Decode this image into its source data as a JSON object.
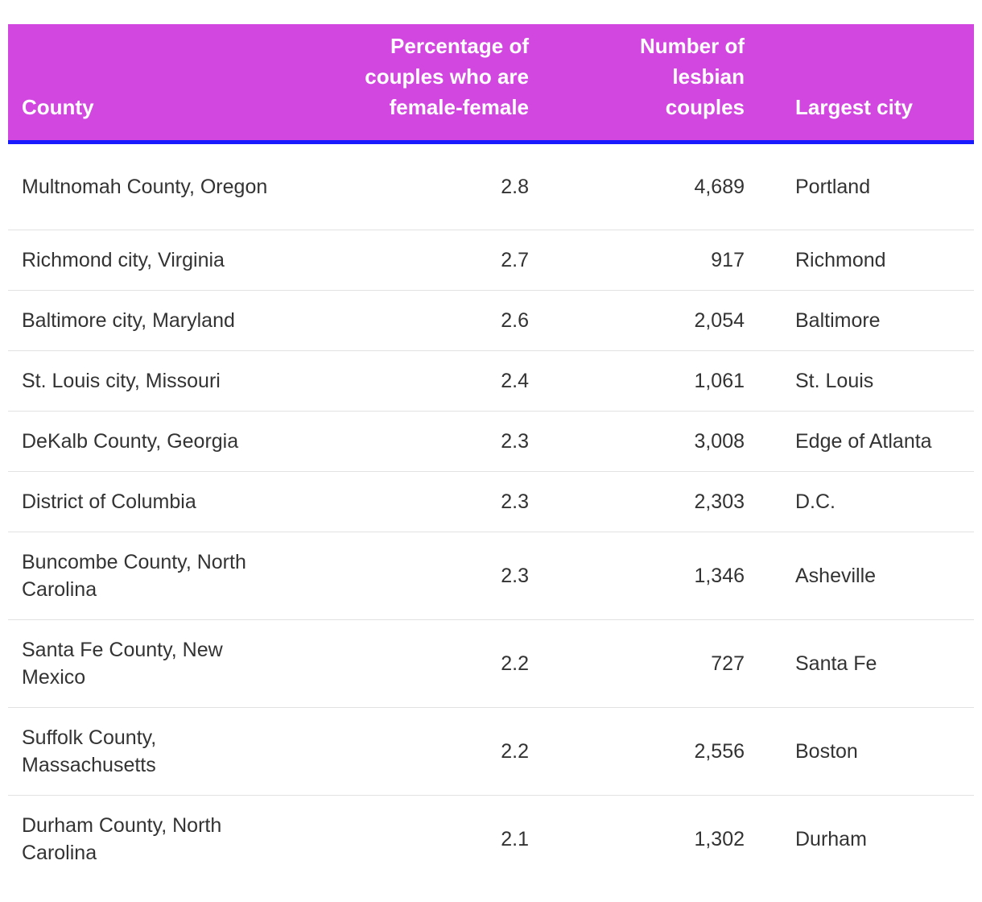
{
  "chart_data": {
    "type": "table",
    "columns": [
      "County",
      "Percentage of couples who are female-female",
      "Number of lesbian couples",
      "Largest city"
    ],
    "rows": [
      {
        "county": "Multnomah County, Oregon",
        "pct": "2.8",
        "number": "4,689",
        "city": "Portland"
      },
      {
        "county": "Richmond city, Virginia",
        "pct": "2.7",
        "number": "917",
        "city": "Richmond"
      },
      {
        "county": "Baltimore city, Maryland",
        "pct": "2.6",
        "number": "2,054",
        "city": "Baltimore"
      },
      {
        "county": "St. Louis city, Missouri",
        "pct": "2.4",
        "number": "1,061",
        "city": "St. Louis"
      },
      {
        "county": "DeKalb County, Georgia",
        "pct": "2.3",
        "number": "3,008",
        "city": "Edge of Atlanta"
      },
      {
        "county": "District of Columbia",
        "pct": "2.3",
        "number": "2,303",
        "city": "D.C."
      },
      {
        "county": "Buncombe County, North Carolina",
        "pct": "2.3",
        "number": "1,346",
        "city": "Asheville"
      },
      {
        "county": "Santa Fe County, New Mexico",
        "pct": "2.2",
        "number": "727",
        "city": "Santa Fe"
      },
      {
        "county": "Suffolk County, Massachusetts",
        "pct": "2.2",
        "number": "2,556",
        "city": "Boston"
      },
      {
        "county": "Durham County, North Carolina",
        "pct": "2.1",
        "number": "1,302",
        "city": "Durham"
      }
    ]
  },
  "colors": {
    "header_background": "#d247e0",
    "header_rule": "#1a1aff",
    "header_text": "#ffffff",
    "body_text": "#333333",
    "row_divider": "#e2e2e2"
  }
}
